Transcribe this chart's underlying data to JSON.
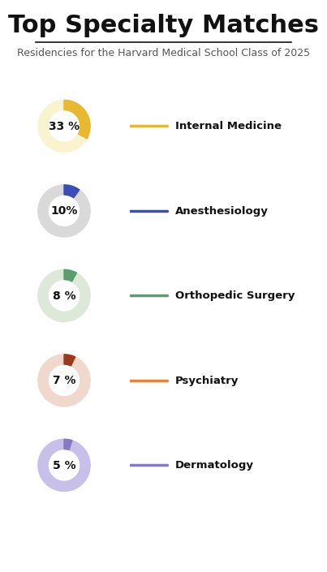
{
  "title": "Top Specialty Matches",
  "subtitle": "Residencies for the Harvard Medical School Class of 2025",
  "bg_color": "#ffffff",
  "title_fontsize": 22,
  "subtitle_fontsize": 9,
  "items": [
    {
      "label": "Internal Medicine",
      "pct": 33,
      "pct_text": "33 %",
      "ring_bg": "#faf3d0",
      "ring_fg": "#e8b830",
      "line_color": "#e8b830"
    },
    {
      "label": "Anesthesiology",
      "pct": 10,
      "pct_text": "10%",
      "ring_bg": "#d9d9d9",
      "ring_fg": "#3a4eb5",
      "line_color": "#3a4eb5"
    },
    {
      "label": "Orthopedic Surgery",
      "pct": 8,
      "pct_text": "8 %",
      "ring_bg": "#dde8d8",
      "ring_fg": "#5a9e6f",
      "line_color": "#5a9e6f"
    },
    {
      "label": "Psychiatry",
      "pct": 7,
      "pct_text": "7 %",
      "ring_bg": "#f0d9cc",
      "ring_fg": "#9b3a1a",
      "line_color": "#e8853a"
    },
    {
      "label": "Dermatology",
      "pct": 5,
      "pct_text": "5 %",
      "ring_bg": "#c8c0e8",
      "ring_fg": "#8878c8",
      "line_color": "#8878c8"
    }
  ]
}
